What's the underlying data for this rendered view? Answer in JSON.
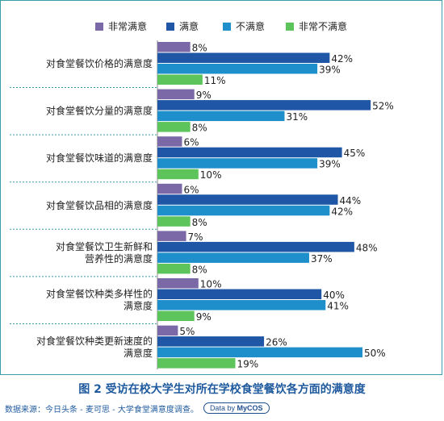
{
  "chart_data": {
    "type": "bar",
    "orientation": "horizontal",
    "categories": [
      [
        "对食堂餐饮价格的满意度"
      ],
      [
        "对食堂餐饮分量的满意度"
      ],
      [
        "对食堂餐饮味道的满意度"
      ],
      [
        "对食堂餐饮品相的满意度"
      ],
      [
        "对食堂餐饮卫生新鲜和",
        "营养性的满意度"
      ],
      [
        "对食堂餐饮种类多样性的",
        "满意度"
      ],
      [
        "对食堂餐饮种类更新速度的",
        "满意度"
      ]
    ],
    "series": [
      {
        "name": "非常满意",
        "color": "#7b68a6",
        "values": [
          8,
          9,
          6,
          6,
          7,
          10,
          5
        ]
      },
      {
        "name": "满意",
        "color": "#1f56a6",
        "values": [
          42,
          52,
          45,
          44,
          48,
          40,
          26
        ]
      },
      {
        "name": "不满意",
        "color": "#1f8fcc",
        "values": [
          39,
          31,
          39,
          42,
          37,
          41,
          50
        ]
      },
      {
        "name": "非常不满意",
        "color": "#5cc45a",
        "values": [
          11,
          8,
          10,
          8,
          8,
          9,
          19
        ]
      }
    ],
    "value_suffix": "%",
    "xlim": [
      0,
      56
    ],
    "legend_position": "top",
    "grid": false
  },
  "figure": {
    "caption": "图 2 受访在校大学生对所在学校食堂餐饮各方面的满意度",
    "source": "数据来源：今日头条 - 麦可思 - 大学食堂满意度调查。",
    "brand_prefix": "Data by",
    "brand_name": "MyCOS"
  }
}
